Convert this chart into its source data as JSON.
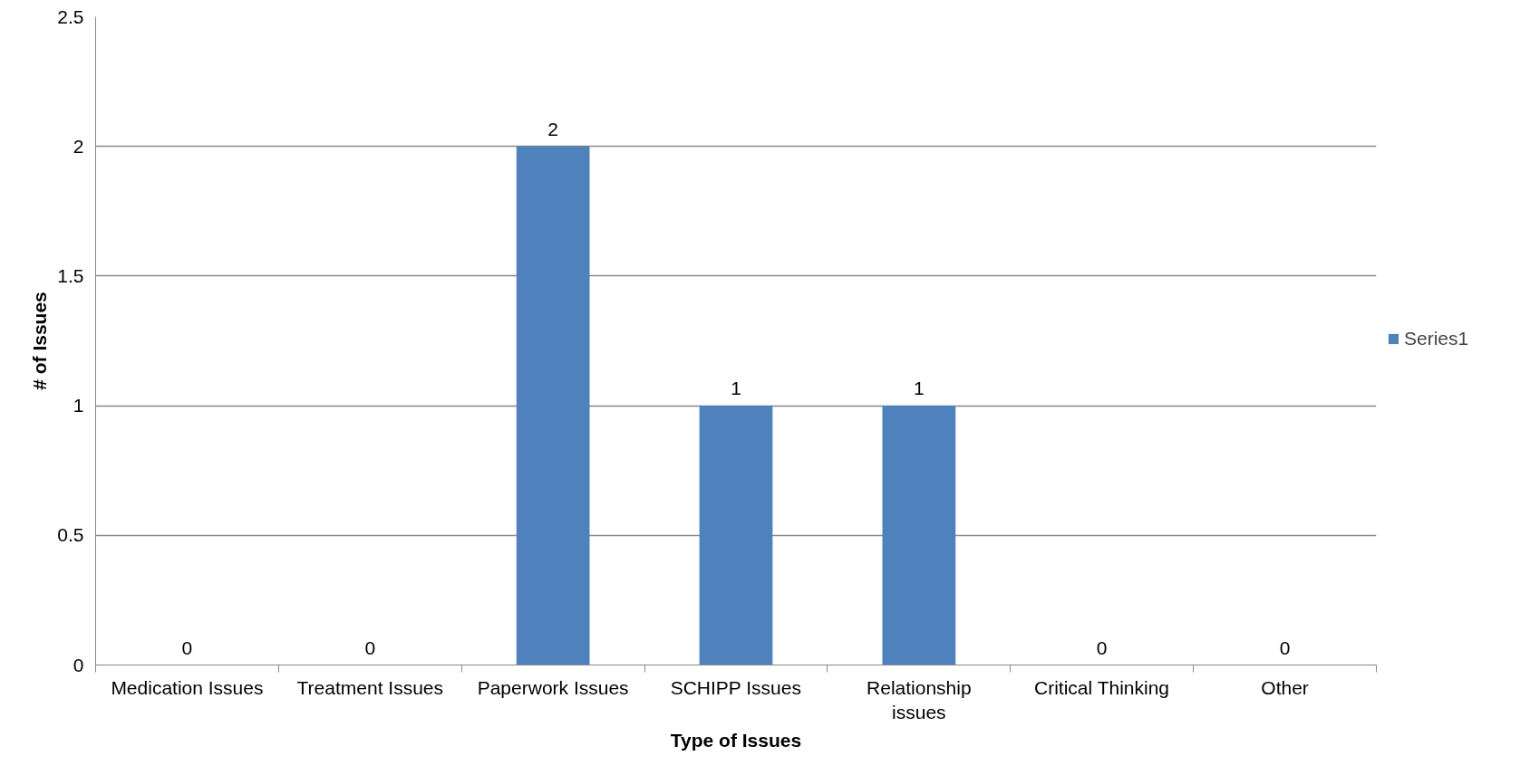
{
  "chart_data": {
    "type": "bar",
    "xlabel": "Type of Issues",
    "ylabel": "# of Issues",
    "categories": [
      "Medication Issues",
      "Treatment Issues",
      "Paperwork Issues",
      "SCHIPP Issues",
      "Relationship\nissues",
      "Critical Thinking",
      "Other"
    ],
    "series": [
      {
        "name": "Series1",
        "color": "#4f81bd",
        "values": [
          0,
          0,
          2,
          1,
          1,
          0,
          0
        ]
      }
    ],
    "ylim": [
      0,
      2.5
    ],
    "yticks": [
      0,
      0.5,
      1,
      1.5,
      2,
      2.5
    ],
    "grid": "y",
    "legend": "right",
    "data_labels": true
  }
}
